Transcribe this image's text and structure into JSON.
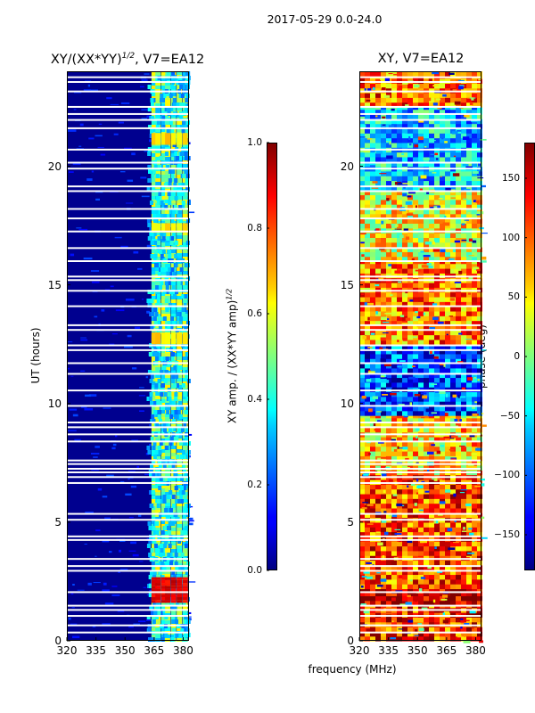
{
  "suptitle": "2017-05-29 0.0-24.0",
  "colors": {
    "background": "#ffffff",
    "jet_dark_blue": "#00008f",
    "jet_red": "#ff2a00",
    "gap_white": "#ffffff"
  },
  "chart_data": [
    {
      "type": "heatmap",
      "title_text": "XY/(XX*YY)",
      "title_sup": "1/2",
      "title_suffix": ", V7=EA12",
      "ylabel": "UT (hours)",
      "xlabel": "",
      "xlim": [
        320,
        383
      ],
      "ylim": [
        0,
        24
      ],
      "x_ticks": [
        320,
        335,
        350,
        365,
        380
      ],
      "y_ticks": [
        0,
        5,
        10,
        15,
        20
      ],
      "grid": false,
      "colorbar": {
        "label": "XY amp. / (XX*YY amp)",
        "label_sup": "1/2",
        "range": [
          0.0,
          1.0
        ],
        "ticks": [
          "0.0",
          "0.2",
          "0.4",
          "0.6",
          "0.8",
          "1.0"
        ],
        "colormap": "jet"
      },
      "bright_channels_mhz": [
        365,
        367,
        370,
        372,
        375,
        378,
        381
      ],
      "strong_burst_ut_hours": [
        1.6,
        2.6
      ],
      "moderate_burst_ut_hours": [
        [
          20.9,
          21.4
        ],
        [
          17.2,
          17.6
        ],
        [
          12.5,
          13.0
        ]
      ],
      "data_gap_ut_hours": [
        0.35,
        0.65,
        1.05,
        1.3,
        1.48,
        2.05,
        2.95,
        3.15,
        3.45,
        4.25,
        4.4,
        5.1,
        5.35,
        6.65,
        6.9,
        7.1,
        7.25,
        7.45,
        7.6,
        8.4,
        8.7,
        9.0,
        9.2,
        9.9,
        10.55,
        11.25,
        11.7,
        12.25,
        12.45,
        13.1,
        13.3,
        14.1,
        14.75,
        15.2,
        15.35,
        16.0,
        16.55,
        17.25,
        17.8,
        18.2,
        18.95,
        19.15,
        19.9,
        20.15,
        20.7,
        21.6,
        21.95,
        22.2,
        22.5,
        23.15,
        23.55,
        23.75
      ]
    },
    {
      "type": "heatmap",
      "title_text": "XY, V7=EA12",
      "ylabel": "",
      "xlabel": "frequency (MHz)",
      "xlim": [
        320,
        383
      ],
      "ylim": [
        0,
        24
      ],
      "x_ticks": [
        320,
        335,
        350,
        365,
        380
      ],
      "y_ticks": [
        0,
        5,
        10,
        15,
        20
      ],
      "grid": false,
      "colorbar": {
        "label": "phase (deg)",
        "range": [
          -180,
          180
        ],
        "ticks": [
          "150",
          "100",
          "50",
          "0",
          "−50",
          "−100",
          "−150"
        ],
        "colormap": "jet"
      },
      "dominant_phase_by_ut_band_deg": [
        {
          "ut": [
            0,
            1.5
          ],
          "phase": 120
        },
        {
          "ut": [
            1.5,
            2.2
          ],
          "phase": 170
        },
        {
          "ut": [
            2.2,
            7.0
          ],
          "phase": 110
        },
        {
          "ut": [
            7.0,
            9.5
          ],
          "phase": 60
        },
        {
          "ut": [
            9.5,
            12.5
          ],
          "phase": -110
        },
        {
          "ut": [
            12.5,
            16.0
          ],
          "phase": 90
        },
        {
          "ut": [
            16.0,
            19.0
          ],
          "phase": 40
        },
        {
          "ut": [
            19.0,
            22.5
          ],
          "phase": -60
        },
        {
          "ut": [
            22.5,
            24.0
          ],
          "phase": 100
        }
      ],
      "data_gap_ut_hours": [
        0.35,
        0.65,
        1.05,
        1.3,
        1.48,
        2.05,
        2.95,
        3.15,
        3.45,
        4.25,
        4.4,
        5.1,
        5.35,
        6.65,
        6.9,
        7.1,
        7.25,
        7.45,
        7.6,
        8.4,
        8.7,
        9.0,
        9.2,
        9.9,
        10.55,
        11.25,
        11.7,
        12.25,
        12.45,
        13.1,
        13.3,
        14.1,
        14.75,
        15.2,
        15.35,
        16.0,
        16.55,
        17.25,
        17.8,
        18.2,
        18.95,
        19.15,
        19.9,
        20.15,
        20.7,
        21.6,
        21.95,
        22.2,
        22.5,
        23.15,
        23.55,
        23.75
      ]
    }
  ]
}
